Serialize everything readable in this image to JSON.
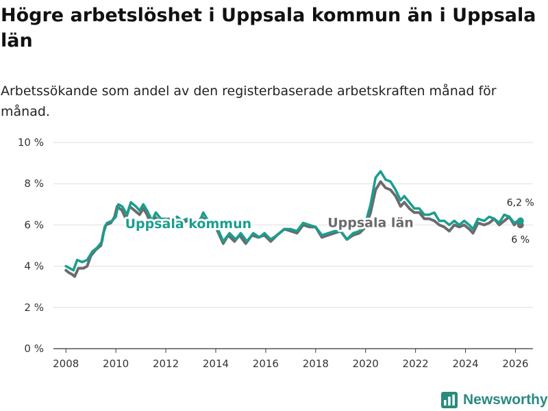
{
  "title": "Högre arbetslöshet i Uppsala kommun än i Uppsala län",
  "subtitle": "Arbetssökande som andel av den registerbaserade arbetskraften månad för månad.",
  "brand": {
    "name": "Newsworthy",
    "icon": "bar-chart-icon"
  },
  "chart_data": {
    "type": "line",
    "title": "Högre arbetslöshet i Uppsala kommun än i Uppsala län",
    "subtitle": "Arbetssökande som andel av den registerbaserade arbetskraften månad för månad.",
    "xlabel": "",
    "ylabel": "",
    "x_range": [
      2007.5,
      2026.7
    ],
    "ylim": [
      0,
      10
    ],
    "grid": true,
    "x_ticks": [
      2008,
      2010,
      2012,
      2014,
      2016,
      2018,
      2020,
      2022,
      2024,
      2026
    ],
    "x_tick_labels": [
      "2008",
      "2010",
      "2012",
      "2014",
      "2016",
      "2018",
      "2020",
      "2022",
      "2024",
      "2026"
    ],
    "y_ticks": [
      0,
      2,
      4,
      6,
      8,
      10
    ],
    "y_tick_labels": [
      "0 %",
      "2 %",
      "4 %",
      "6 %",
      "8 %",
      "10 %"
    ],
    "series": [
      {
        "name": "Uppsala län",
        "color": "#6b6b6b",
        "label_pos": [
          2020.2,
          5.9
        ],
        "end_label": "6 %",
        "points": [
          [
            2008.0,
            3.8
          ],
          [
            2008.1,
            3.7
          ],
          [
            2008.25,
            3.6
          ],
          [
            2008.35,
            3.5
          ],
          [
            2008.5,
            3.9
          ],
          [
            2008.7,
            3.9
          ],
          [
            2008.85,
            4.0
          ],
          [
            2009.0,
            4.5
          ],
          [
            2009.2,
            4.8
          ],
          [
            2009.4,
            5.0
          ],
          [
            2009.5,
            5.6
          ],
          [
            2009.6,
            6.0
          ],
          [
            2009.8,
            6.1
          ],
          [
            2009.95,
            6.4
          ],
          [
            2010.05,
            6.9
          ],
          [
            2010.25,
            6.7
          ],
          [
            2010.4,
            6.3
          ],
          [
            2010.55,
            6.9
          ],
          [
            2010.75,
            6.7
          ],
          [
            2010.95,
            6.5
          ],
          [
            2011.1,
            6.8
          ],
          [
            2011.25,
            6.5
          ],
          [
            2011.4,
            6.0
          ],
          [
            2011.55,
            6.4
          ],
          [
            2011.75,
            6.2
          ],
          [
            2011.95,
            6.2
          ],
          [
            2012.1,
            6.3
          ],
          [
            2012.25,
            6.0
          ],
          [
            2012.45,
            6.3
          ],
          [
            2012.65,
            6.1
          ],
          [
            2012.85,
            6.2
          ],
          [
            2013.0,
            6.3
          ],
          [
            2013.2,
            6.0
          ],
          [
            2013.45,
            6.4
          ],
          [
            2013.6,
            6.2
          ],
          [
            2013.85,
            6.0
          ],
          [
            2014.0,
            5.9
          ],
          [
            2014.3,
            5.1
          ],
          [
            2014.5,
            5.5
          ],
          [
            2014.75,
            5.2
          ],
          [
            2014.95,
            5.5
          ],
          [
            2015.2,
            5.1
          ],
          [
            2015.45,
            5.5
          ],
          [
            2015.7,
            5.4
          ],
          [
            2015.95,
            5.5
          ],
          [
            2016.2,
            5.2
          ],
          [
            2016.45,
            5.5
          ],
          [
            2016.75,
            5.8
          ],
          [
            2017.0,
            5.7
          ],
          [
            2017.25,
            5.6
          ],
          [
            2017.5,
            6.0
          ],
          [
            2017.75,
            5.9
          ],
          [
            2018.0,
            5.9
          ],
          [
            2018.25,
            5.4
          ],
          [
            2018.5,
            5.5
          ],
          [
            2018.75,
            5.6
          ],
          [
            2019.0,
            5.7
          ],
          [
            2019.25,
            5.3
          ],
          [
            2019.5,
            5.5
          ],
          [
            2019.75,
            5.6
          ],
          [
            2020.0,
            5.9
          ],
          [
            2020.2,
            6.6
          ],
          [
            2020.4,
            7.7
          ],
          [
            2020.6,
            8.1
          ],
          [
            2020.8,
            7.8
          ],
          [
            2021.0,
            7.7
          ],
          [
            2021.2,
            7.4
          ],
          [
            2021.4,
            6.9
          ],
          [
            2021.55,
            7.1
          ],
          [
            2021.75,
            6.8
          ],
          [
            2021.95,
            6.6
          ],
          [
            2022.15,
            6.6
          ],
          [
            2022.35,
            6.3
          ],
          [
            2022.55,
            6.3
          ],
          [
            2022.75,
            6.2
          ],
          [
            2022.95,
            6.0
          ],
          [
            2023.15,
            5.9
          ],
          [
            2023.35,
            5.7
          ],
          [
            2023.55,
            6.0
          ],
          [
            2023.75,
            5.9
          ],
          [
            2023.95,
            6.0
          ],
          [
            2024.15,
            5.8
          ],
          [
            2024.3,
            5.6
          ],
          [
            2024.5,
            6.1
          ],
          [
            2024.75,
            6.0
          ],
          [
            2024.95,
            6.1
          ],
          [
            2025.15,
            6.3
          ],
          [
            2025.35,
            6.0
          ],
          [
            2025.55,
            6.2
          ],
          [
            2025.75,
            6.4
          ],
          [
            2025.95,
            6.0
          ],
          [
            2026.1,
            6.2
          ],
          [
            2026.2,
            6.0
          ]
        ]
      },
      {
        "name": "Uppsala kommun",
        "color": "#1a9e8f",
        "label_pos": [
          2012.9,
          5.85
        ],
        "end_label": "6,2 %",
        "points": [
          [
            2008.0,
            4.0
          ],
          [
            2008.15,
            3.9
          ],
          [
            2008.3,
            3.8
          ],
          [
            2008.45,
            4.3
          ],
          [
            2008.65,
            4.2
          ],
          [
            2008.85,
            4.3
          ],
          [
            2009.05,
            4.7
          ],
          [
            2009.25,
            4.9
          ],
          [
            2009.45,
            5.2
          ],
          [
            2009.55,
            5.9
          ],
          [
            2009.65,
            6.1
          ],
          [
            2009.85,
            6.2
          ],
          [
            2010.0,
            6.4
          ],
          [
            2010.1,
            7.0
          ],
          [
            2010.25,
            6.9
          ],
          [
            2010.45,
            6.5
          ],
          [
            2010.6,
            7.1
          ],
          [
            2010.8,
            6.9
          ],
          [
            2010.95,
            6.7
          ],
          [
            2011.1,
            7.0
          ],
          [
            2011.25,
            6.7
          ],
          [
            2011.45,
            6.2
          ],
          [
            2011.6,
            6.6
          ],
          [
            2011.8,
            6.3
          ],
          [
            2012.0,
            6.3
          ],
          [
            2012.2,
            6.1
          ],
          [
            2012.45,
            6.4
          ],
          [
            2012.65,
            6.2
          ],
          [
            2012.85,
            6.3
          ],
          [
            2013.05,
            6.2
          ],
          [
            2013.3,
            6.0
          ],
          [
            2013.5,
            6.6
          ],
          [
            2013.7,
            6.2
          ],
          [
            2013.9,
            6.0
          ],
          [
            2014.05,
            5.9
          ],
          [
            2014.3,
            5.2
          ],
          [
            2014.55,
            5.6
          ],
          [
            2014.8,
            5.3
          ],
          [
            2015.0,
            5.6
          ],
          [
            2015.25,
            5.2
          ],
          [
            2015.5,
            5.6
          ],
          [
            2015.75,
            5.4
          ],
          [
            2015.95,
            5.6
          ],
          [
            2016.2,
            5.3
          ],
          [
            2016.45,
            5.5
          ],
          [
            2016.75,
            5.8
          ],
          [
            2017.0,
            5.8
          ],
          [
            2017.25,
            5.7
          ],
          [
            2017.5,
            6.1
          ],
          [
            2017.75,
            6.0
          ],
          [
            2018.0,
            5.9
          ],
          [
            2018.25,
            5.5
          ],
          [
            2018.5,
            5.6
          ],
          [
            2018.75,
            5.7
          ],
          [
            2019.0,
            5.7
          ],
          [
            2019.25,
            5.3
          ],
          [
            2019.5,
            5.6
          ],
          [
            2019.75,
            5.7
          ],
          [
            2020.0,
            6.1
          ],
          [
            2020.2,
            7.0
          ],
          [
            2020.4,
            8.3
          ],
          [
            2020.6,
            8.6
          ],
          [
            2020.8,
            8.2
          ],
          [
            2021.0,
            8.1
          ],
          [
            2021.2,
            7.7
          ],
          [
            2021.4,
            7.2
          ],
          [
            2021.55,
            7.4
          ],
          [
            2021.75,
            7.1
          ],
          [
            2021.95,
            6.8
          ],
          [
            2022.15,
            6.8
          ],
          [
            2022.35,
            6.5
          ],
          [
            2022.55,
            6.5
          ],
          [
            2022.75,
            6.6
          ],
          [
            2022.95,
            6.2
          ],
          [
            2023.15,
            6.2
          ],
          [
            2023.35,
            6.0
          ],
          [
            2023.55,
            6.2
          ],
          [
            2023.75,
            6.0
          ],
          [
            2023.95,
            6.2
          ],
          [
            2024.15,
            6.0
          ],
          [
            2024.3,
            5.8
          ],
          [
            2024.5,
            6.3
          ],
          [
            2024.75,
            6.2
          ],
          [
            2024.95,
            6.4
          ],
          [
            2025.15,
            6.3
          ],
          [
            2025.35,
            6.1
          ],
          [
            2025.55,
            6.5
          ],
          [
            2025.75,
            6.4
          ],
          [
            2025.95,
            6.1
          ],
          [
            2026.1,
            6.2
          ],
          [
            2026.2,
            6.2
          ]
        ]
      }
    ]
  }
}
